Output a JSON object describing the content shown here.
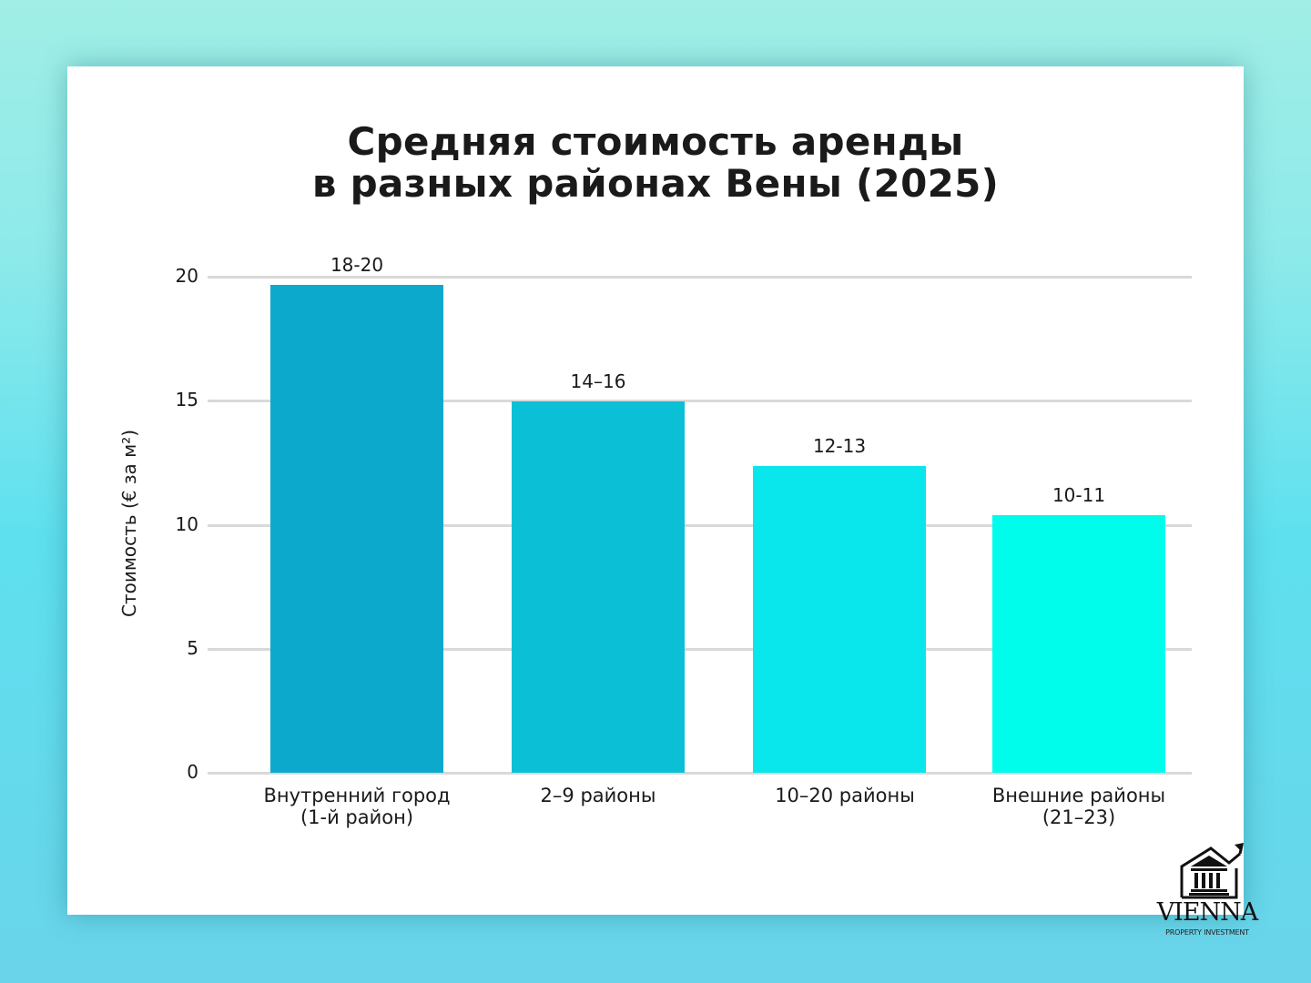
{
  "header": {
    "title_line1": "Средняя стоимость аренды",
    "title_line2": "в разных районах Вены (2025)"
  },
  "axes": {
    "ylabel": "Стоимость (€ за м²)",
    "yticks": [
      "0",
      "5",
      "10",
      "15",
      "20"
    ]
  },
  "bars": [
    {
      "category_line1": "Внутренний город",
      "category_line2": "(1-й район)",
      "value_label": "18-20",
      "value": 19.7,
      "color": "#0da9cc"
    },
    {
      "category_line1": "2–9 районы",
      "category_line2": "",
      "value_label": "14–16",
      "value": 15.0,
      "color": "#0bc0d6"
    },
    {
      "category_line1": "10–20 районы",
      "category_line2": "",
      "value_label": "12-13",
      "value": 12.4,
      "color": "#09e6ec"
    },
    {
      "category_line1": "Внешние районы",
      "category_line2": "(21–23)",
      "value_label": "10-11",
      "value": 10.4,
      "color": "#00fdec"
    }
  ],
  "logo": {
    "name": "VIENNA",
    "subtitle": "PROPERTY INVESTMENT"
  },
  "chart_data": {
    "type": "bar",
    "title": "Средняя стоимость аренды в разных районах Вены (2025)",
    "categories": [
      "Внутренний город (1-й район)",
      "2–9 районы",
      "10–20 районы",
      "Внешние районы (21–23)"
    ],
    "values": [
      19.7,
      15.0,
      12.4,
      10.4
    ],
    "data_labels": [
      "18-20",
      "14–16",
      "12-13",
      "10-11"
    ],
    "xlabel": "",
    "ylabel": "Стоимость (€ за м²)",
    "ylim": [
      0,
      20
    ],
    "yticks": [
      0,
      5,
      10,
      15,
      20
    ],
    "grid": true,
    "legend": "none",
    "colors": [
      "#0da9cc",
      "#0bc0d6",
      "#09e6ec",
      "#00fdec"
    ]
  }
}
